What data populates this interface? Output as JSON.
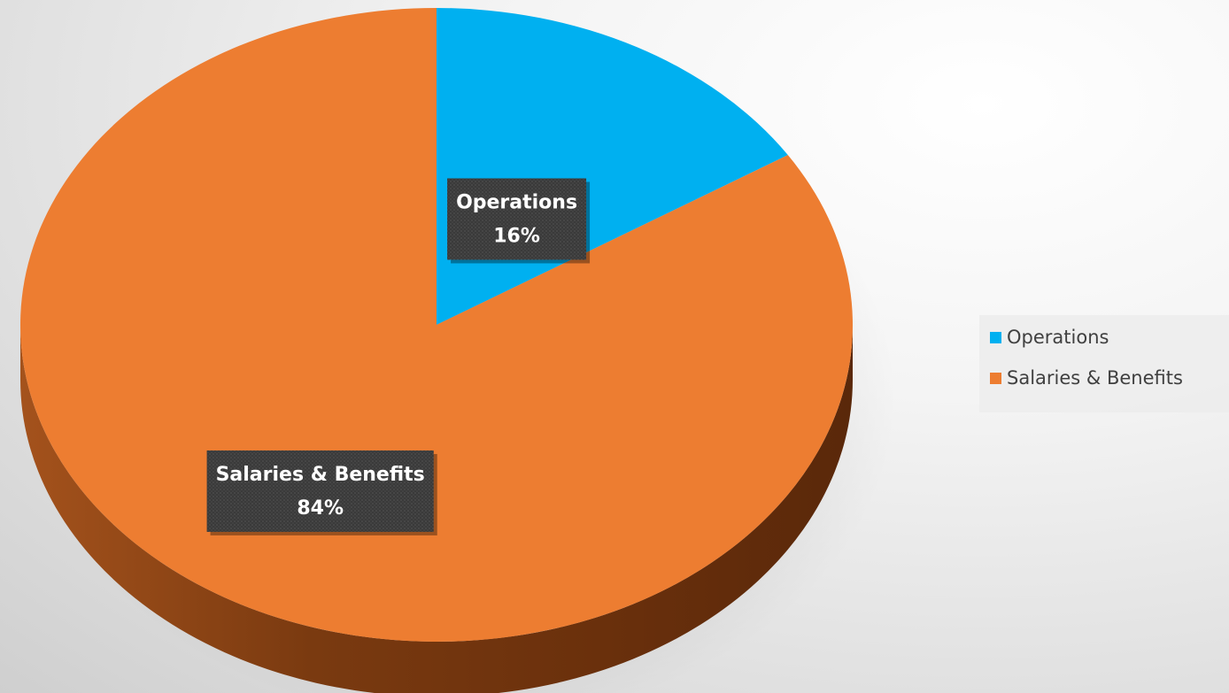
{
  "chart_data": {
    "type": "pie",
    "style": "3d",
    "slices": [
      {
        "name": "Operations",
        "value": 16,
        "label_value": "16%",
        "color": "#00B0F0",
        "side_color": "#0088bb"
      },
      {
        "name": "Salaries & Benefits",
        "value": 84,
        "label_value": "84%",
        "color": "#ED7D31",
        "side_color": "#8a4212"
      }
    ],
    "legend_position": "right",
    "legend": [
      {
        "name": "Operations",
        "color": "#00B0F0"
      },
      {
        "name": "Salaries & Benefits",
        "color": "#ED7D31"
      }
    ],
    "label_box_color": "#3a3a3a"
  }
}
